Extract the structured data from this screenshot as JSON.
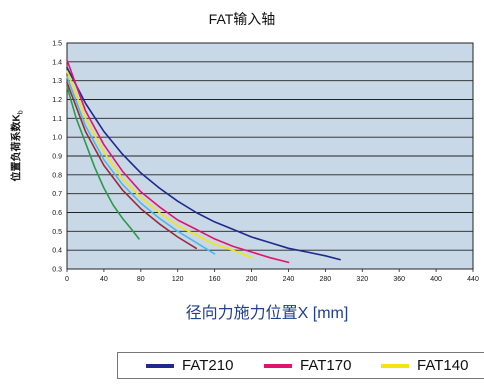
{
  "chart_data": {
    "type": "line",
    "title": "FAT输入轴",
    "ylabel": "位置负荷系数K",
    "ylabel_sub": "b",
    "xlabel": "径向力施力位置X [mm]",
    "xlim": [
      0,
      440
    ],
    "ylim": [
      0.3,
      1.5
    ],
    "x_ticks": [
      "0",
      "40",
      "80",
      "120",
      "160",
      "200",
      "240",
      "280",
      "320",
      "360",
      "400",
      "440"
    ],
    "y_ticks": [
      "0.3",
      "0.4",
      "0.5",
      "0.6",
      "0.7",
      "0.8",
      "0.9",
      "1.0",
      "1.1",
      "1.2",
      "1.3",
      "1.4",
      "1.5"
    ],
    "grid": "horizontal",
    "plot_background": "#c9d8e6",
    "series": [
      {
        "name": "FAT210",
        "color": "#1f2a8c",
        "x": [
          0,
          20,
          40,
          60,
          80,
          100,
          120,
          140,
          160,
          180,
          200,
          220,
          240,
          260,
          280,
          296
        ],
        "y": [
          1.37,
          1.18,
          1.03,
          0.91,
          0.81,
          0.73,
          0.66,
          0.6,
          0.55,
          0.51,
          0.47,
          0.44,
          0.41,
          0.39,
          0.37,
          0.35
        ]
      },
      {
        "name": "FAT170",
        "color": "#e0146e",
        "x": [
          0,
          20,
          40,
          60,
          80,
          100,
          120,
          140,
          160,
          180,
          200,
          220,
          240
        ],
        "y": [
          1.41,
          1.14,
          0.96,
          0.82,
          0.71,
          0.63,
          0.56,
          0.51,
          0.46,
          0.42,
          0.39,
          0.36,
          0.335
        ]
      },
      {
        "name": "FAT140",
        "color": "#f5e50f",
        "x": [
          0,
          20,
          40,
          60,
          80,
          100,
          120,
          140,
          160,
          180,
          200
        ],
        "y": [
          1.35,
          1.1,
          0.92,
          0.78,
          0.68,
          0.6,
          0.53,
          0.48,
          0.43,
          0.4,
          0.36
        ]
      },
      {
        "name": "",
        "color": "#4fb6e6",
        "x": [
          0,
          20,
          40,
          60,
          80,
          100,
          120,
          140,
          160
        ],
        "y": [
          1.32,
          1.06,
          0.88,
          0.75,
          0.65,
          0.57,
          0.5,
          0.44,
          0.38
        ]
      },
      {
        "name": "",
        "color": "#9a2a3a",
        "x": [
          0,
          20,
          40,
          60,
          80,
          100,
          120,
          140
        ],
        "y": [
          1.29,
          1.03,
          0.85,
          0.72,
          0.62,
          0.54,
          0.47,
          0.41
        ]
      },
      {
        "name": "",
        "color": "#2a9a4a",
        "x": [
          0,
          10,
          20,
          30,
          40,
          50,
          60,
          70,
          78
        ],
        "y": [
          1.27,
          1.1,
          0.97,
          0.84,
          0.73,
          0.64,
          0.57,
          0.51,
          0.46
        ]
      }
    ],
    "legend": {
      "placement": "bottom",
      "entries": [
        "FAT210",
        "FAT170",
        "FAT140"
      ]
    }
  }
}
